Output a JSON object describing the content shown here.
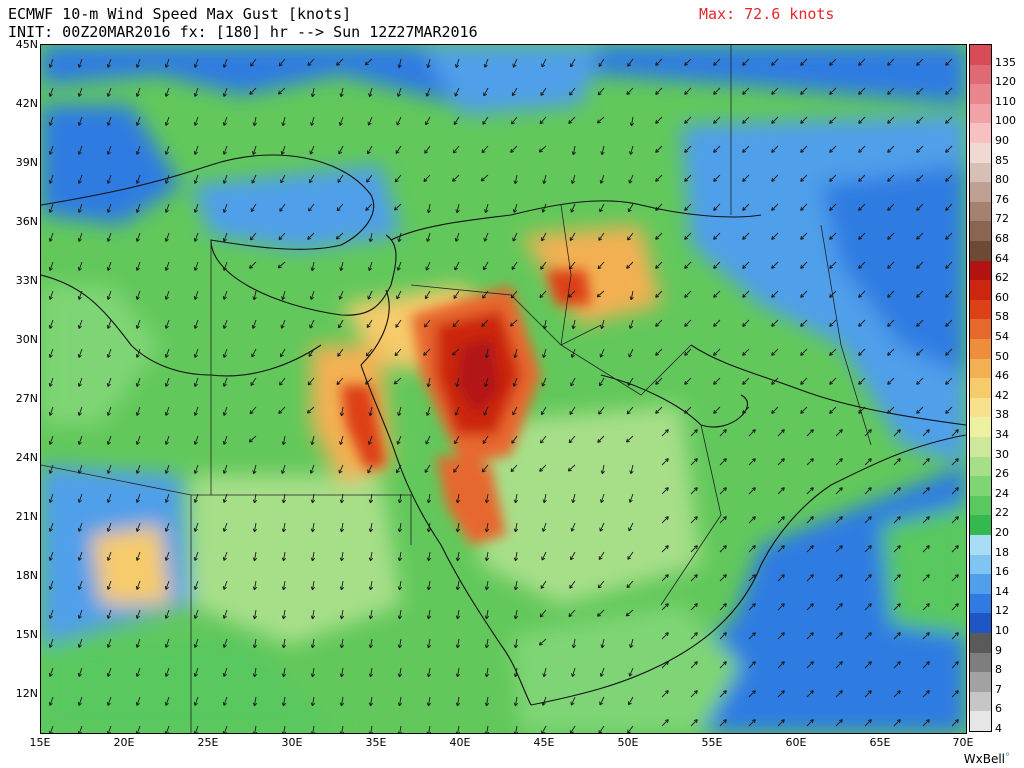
{
  "header": {
    "title": "ECMWF 10-m Wind Speed Max Gust [knots]",
    "init_line": "INIT: 00Z20MAR2016 fx: [180] hr --> Sun 12Z27MAR2016",
    "max_label": "Max: 72.6 knots"
  },
  "map": {
    "lon_range": [
      15,
      70
    ],
    "lat_range": [
      10,
      45
    ],
    "lat_ticks": [
      "45N",
      "42N",
      "39N",
      "36N",
      "33N",
      "30N",
      "27N",
      "24N",
      "21N",
      "18N",
      "15N",
      "12N"
    ],
    "lon_ticks": [
      "15E",
      "20E",
      "25E",
      "30E",
      "35E",
      "40E",
      "45E",
      "50E",
      "55E",
      "60E",
      "65E",
      "70E"
    ]
  },
  "legend": {
    "values": [
      "135",
      "120",
      "110",
      "100",
      "90",
      "85",
      "80",
      "76",
      "72",
      "68",
      "64",
      "62",
      "60",
      "58",
      "54",
      "50",
      "46",
      "42",
      "38",
      "34",
      "30",
      "26",
      "24",
      "22",
      "20",
      "18",
      "16",
      "14",
      "12",
      "10",
      "9",
      "8",
      "7",
      "6",
      "4"
    ],
    "colors": [
      "#d84c57",
      "#e06a73",
      "#e8868c",
      "#f0a2a6",
      "#f7c0c1",
      "#efd9d2",
      "#d6bfb5",
      "#bea094",
      "#a4826f",
      "#8a6652",
      "#6c4a34",
      "#b31212",
      "#cc2610",
      "#dd4118",
      "#e7682d",
      "#ee8e3d",
      "#f3b052",
      "#f6cb6c",
      "#f8e18c",
      "#ecf0a0",
      "#cde89a",
      "#a7df89",
      "#7fd574",
      "#58c85f",
      "#35b84e",
      "#a9dcf5",
      "#7fc4f2",
      "#4f9fea",
      "#2f7be2",
      "#1f55c5",
      "#5a5a5a",
      "#7e7e7e",
      "#a2a2a2",
      "#c6c6c6",
      "#e6e6e6"
    ]
  },
  "brand": {
    "name": "WxBell",
    "mark": "°"
  }
}
